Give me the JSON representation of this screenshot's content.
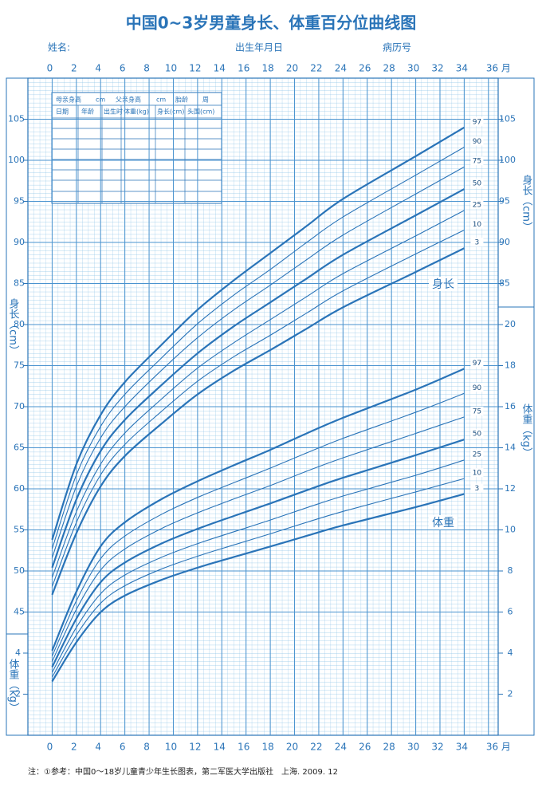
{
  "header": {
    "title": "中国0~3岁男童身长、体重百分位曲线图",
    "name_label": "姓名:",
    "birth_label": "出生年月日",
    "record_label": "病历号"
  },
  "record_table": {
    "parents": [
      "母亲身高",
      "cm",
      "父亲身高",
      "cm",
      "胎龄",
      "周"
    ],
    "columns": [
      "日期",
      "年龄",
      "出生时",
      "体重(kg)",
      "身长(cm)",
      "头围(cm)"
    ]
  },
  "footnote": "注：①参考：中国0～18岁儿童青少年生长图表，第二军医大学出版社　上海. 2009. 12",
  "chart_data": {
    "type": "line",
    "y_label": "身长（cm）",
    "y2_label": "体重（kg）",
    "length_annotation": "身长",
    "weight_annotation": "体重",
    "x": [
      0,
      2,
      4,
      6,
      9,
      12,
      15,
      18,
      21,
      24,
      30,
      34
    ],
    "xlim": [
      -2,
      36.8
    ],
    "xticks": [
      0,
      2,
      4,
      6,
      8,
      10,
      12,
      14,
      16,
      18,
      20,
      22,
      24,
      26,
      28,
      30,
      32,
      34,
      {
        "value": 36,
        "label": "36 月"
      }
    ],
    "ylim": [
      30,
      110
    ],
    "yticks": [
      45,
      50,
      55,
      60,
      65,
      70,
      75,
      80,
      85,
      90,
      95,
      100,
      105
    ],
    "yticks_right": [
      85,
      90,
      95,
      100,
      105
    ],
    "y2lim": [
      0,
      32
    ],
    "y2ticks": [
      2,
      4,
      6,
      8,
      10,
      12,
      14,
      16,
      18,
      20
    ],
    "y2ticks_left": [
      2,
      4
    ],
    "grid": true,
    "color": "#2a74b8",
    "series": [
      {
        "name": "97",
        "color": "#2a74b8",
        "width": 2.2,
        "values": [
          53.8,
          63.0,
          69.0,
          73.0,
          77.5,
          81.8,
          85.4,
          88.7,
          92.0,
          95.3,
          100.5,
          104.0
        ]
      },
      {
        "name": "90",
        "color": "#2a74b8",
        "width": 1.1,
        "values": [
          52.7,
          61.7,
          67.6,
          71.5,
          75.9,
          80.1,
          83.6,
          86.7,
          90.0,
          93.1,
          98.2,
          101.6
        ]
      },
      {
        "name": "75",
        "color": "#2a74b8",
        "width": 1.1,
        "values": [
          51.6,
          60.3,
          66.2,
          70.0,
          74.4,
          78.4,
          81.8,
          84.8,
          87.9,
          90.9,
          95.9,
          99.2
        ]
      },
      {
        "name": "50",
        "color": "#2a74b8",
        "width": 2.2,
        "values": [
          50.4,
          58.7,
          64.6,
          68.4,
          72.6,
          76.5,
          79.8,
          82.7,
          85.6,
          88.5,
          93.3,
          96.5
        ]
      },
      {
        "name": "25",
        "color": "#2a74b8",
        "width": 1.1,
        "values": [
          49.2,
          57.2,
          63.0,
          66.8,
          70.9,
          74.7,
          77.8,
          80.6,
          83.4,
          86.2,
          90.8,
          93.9
        ]
      },
      {
        "name": "10",
        "color": "#2a74b8",
        "width": 1.1,
        "values": [
          48.1,
          55.9,
          61.7,
          65.4,
          69.4,
          73.1,
          76.1,
          78.7,
          81.4,
          84.1,
          88.6,
          91.5
        ]
      },
      {
        "name": "3",
        "color": "#2a74b8",
        "width": 2.2,
        "values": [
          47.1,
          54.6,
          60.3,
          64.0,
          67.9,
          71.5,
          74.4,
          76.9,
          79.5,
          82.1,
          86.4,
          89.3
        ]
      },
      {
        "name": "97",
        "color": "#2a74b8",
        "width": 2.2,
        "axis": "y2",
        "values": [
          4.12,
          6.99,
          9.2,
          10.37,
          11.49,
          12.37,
          13.15,
          13.9,
          14.7,
          15.46,
          16.83,
          17.85
        ]
      },
      {
        "name": "90",
        "color": "#2a74b8",
        "width": 1.1,
        "axis": "y2",
        "values": [
          3.85,
          6.55,
          8.6,
          9.7,
          10.75,
          11.58,
          12.3,
          13.01,
          13.75,
          14.46,
          15.73,
          16.65
        ]
      },
      {
        "name": "75",
        "color": "#2a74b8",
        "width": 1.1,
        "axis": "y2",
        "values": [
          3.59,
          6.13,
          8.04,
          9.07,
          10.06,
          10.83,
          11.51,
          12.16,
          12.86,
          13.51,
          14.7,
          15.5
        ]
      },
      {
        "name": "50",
        "color": "#2a74b8",
        "width": 2.2,
        "axis": "y2",
        "values": [
          3.32,
          5.68,
          7.45,
          8.41,
          9.33,
          10.05,
          10.68,
          11.29,
          11.93,
          12.54,
          13.64,
          14.4
        ]
      },
      {
        "name": "25",
        "color": "#2a74b8",
        "width": 1.1,
        "axis": "y2",
        "values": [
          3.06,
          5.25,
          6.89,
          7.8,
          8.66,
          9.33,
          9.91,
          10.48,
          11.08,
          11.65,
          12.66,
          13.4
        ]
      },
      {
        "name": "10",
        "color": "#2a74b8",
        "width": 1.1,
        "axis": "y2",
        "values": [
          2.83,
          4.88,
          6.43,
          7.28,
          8.09,
          8.72,
          9.27,
          9.81,
          10.37,
          10.9,
          11.85,
          12.5
        ]
      },
      {
        "name": "3",
        "color": "#2a74b8",
        "width": 2.2,
        "axis": "y2",
        "values": [
          2.62,
          4.53,
          5.99,
          6.8,
          7.56,
          8.16,
          8.68,
          9.19,
          9.71,
          10.22,
          11.11,
          11.75
        ]
      }
    ]
  }
}
